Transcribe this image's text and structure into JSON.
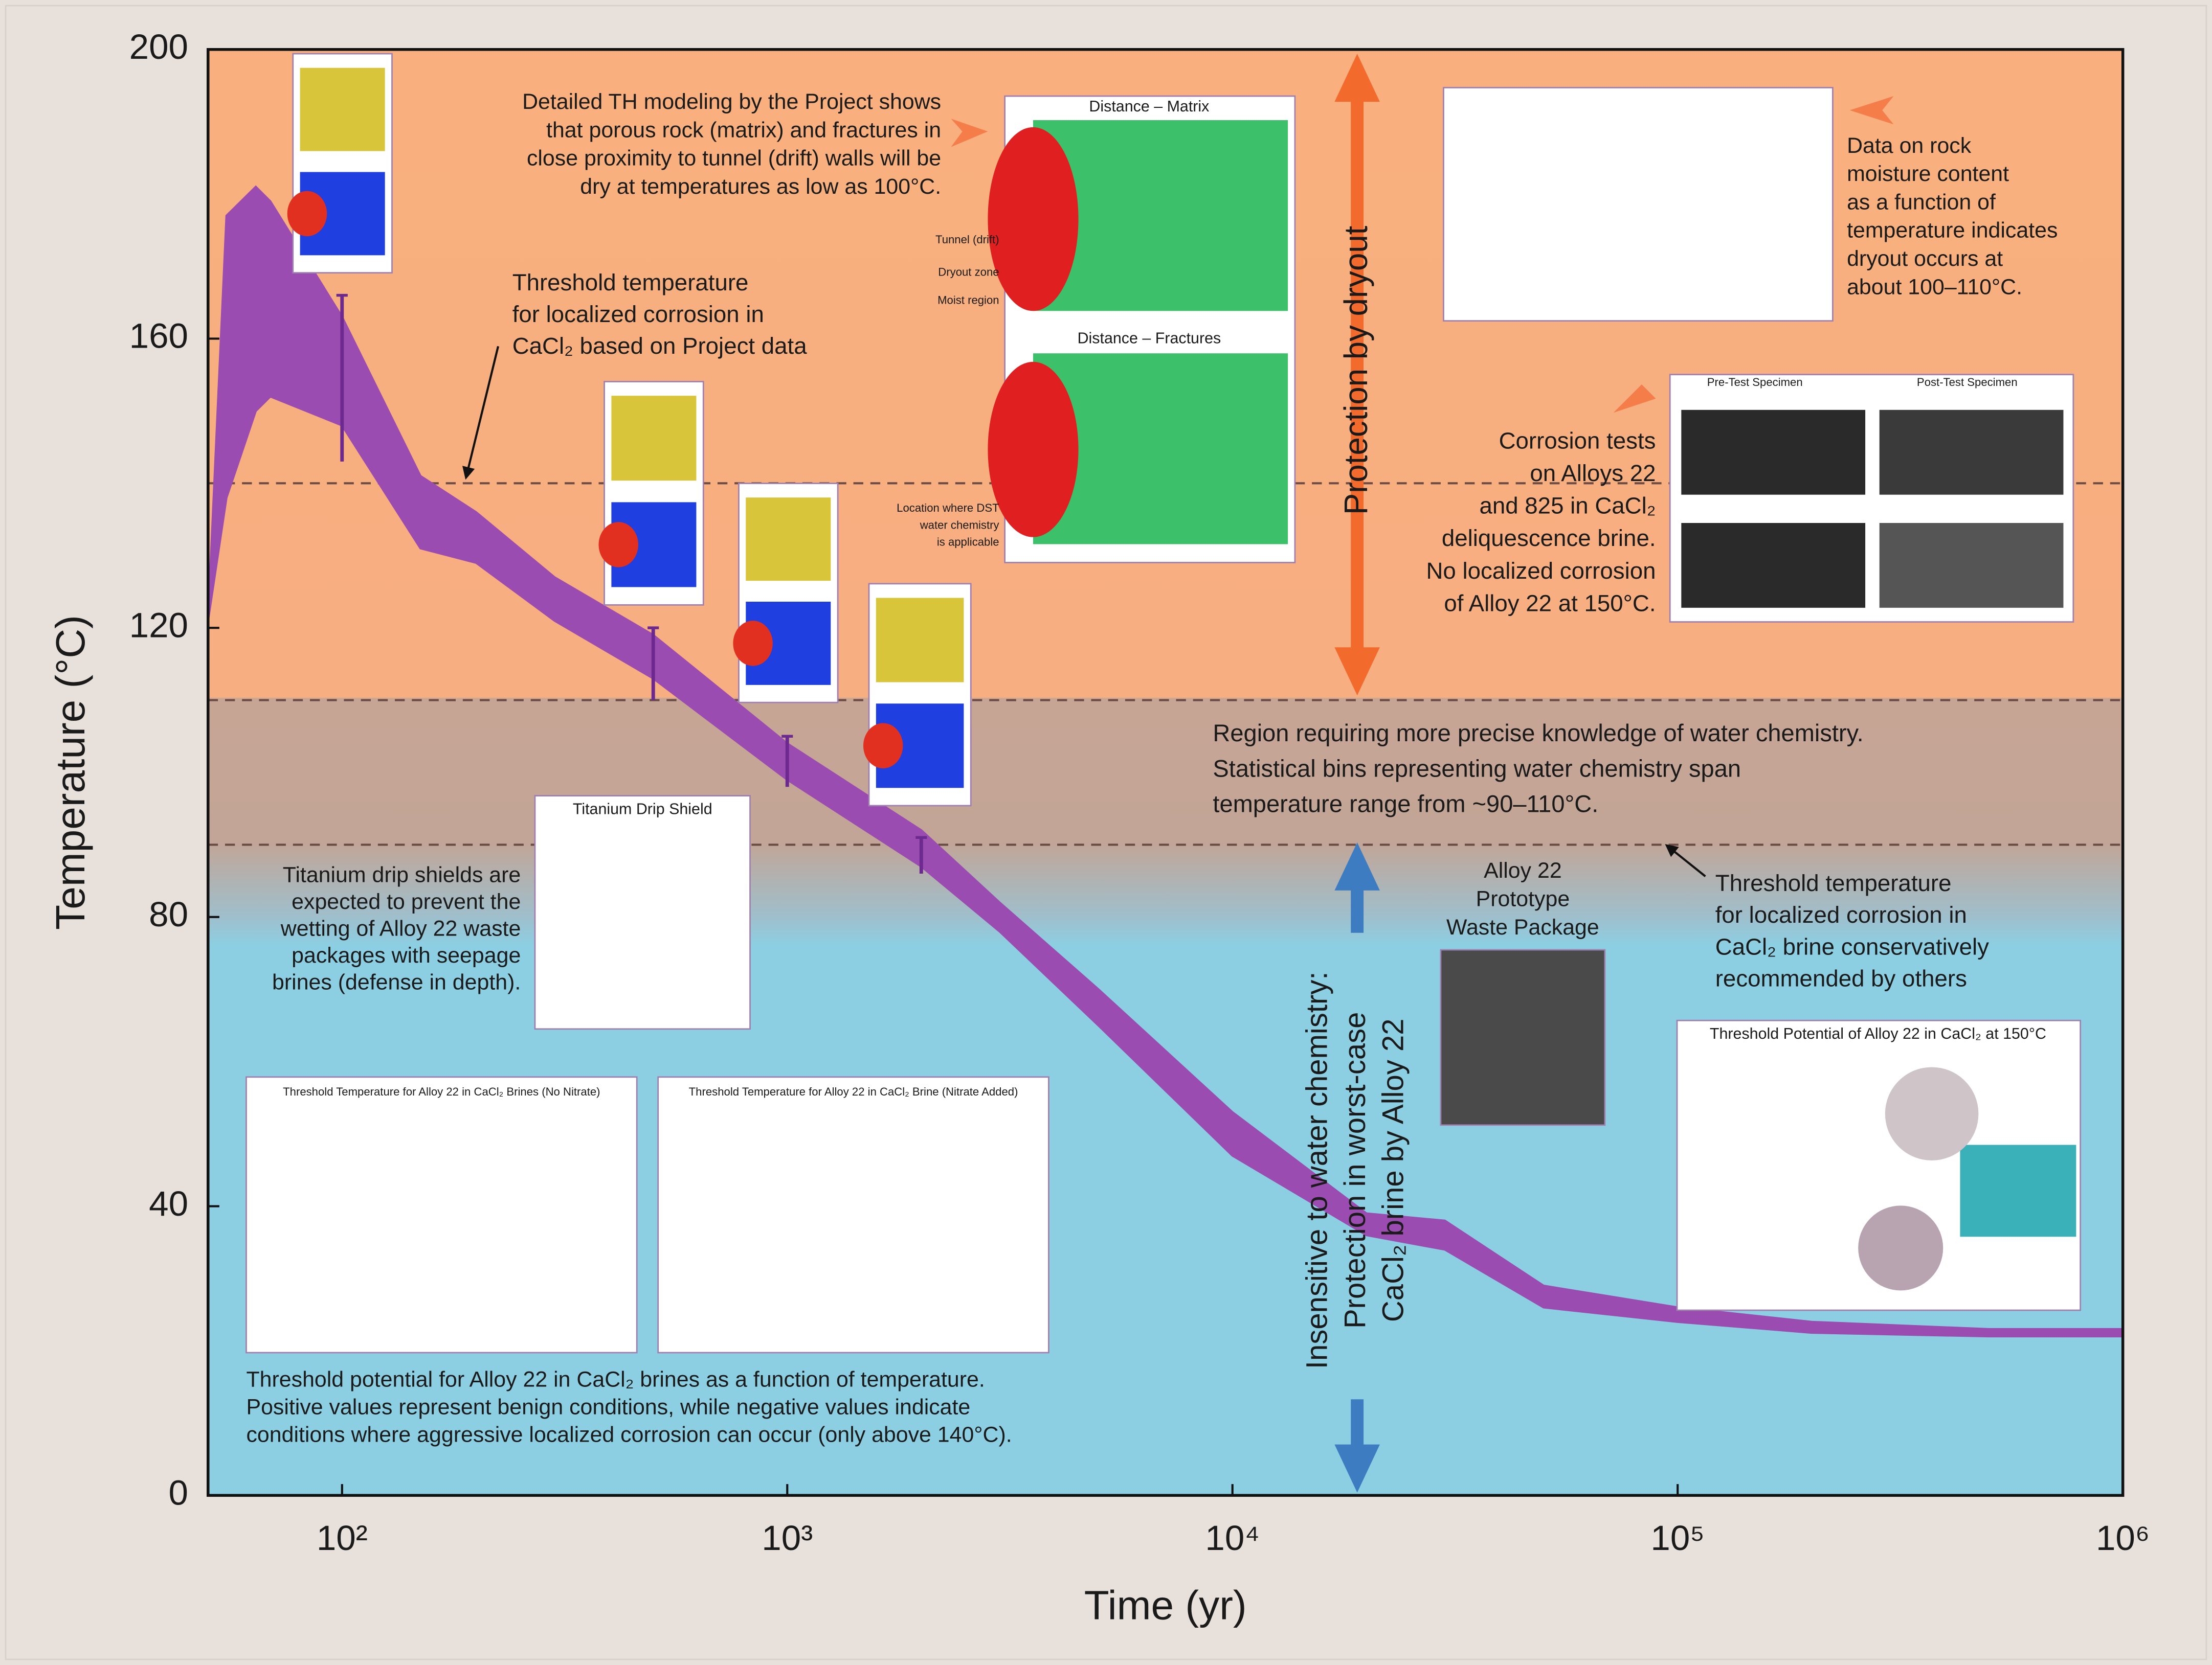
{
  "chart_data": {
    "type": "band",
    "xlabel": "Time (yr)",
    "ylabel": "Temperature (°C)",
    "xscale": "log",
    "xlim": [
      50,
      1000000
    ],
    "ylim": [
      0,
      200
    ],
    "xticks": [
      {
        "value": 100,
        "label": "10²"
      },
      {
        "value": 1000,
        "label": "10³"
      },
      {
        "value": 10000,
        "label": "10⁴"
      },
      {
        "value": 100000,
        "label": "10⁵"
      },
      {
        "value": 1000000,
        "label": "10⁶"
      }
    ],
    "yticks": [
      0,
      40,
      80,
      120,
      160,
      200
    ],
    "color": "#9a4cb0",
    "x": [
      50,
      55,
      64,
      69,
      100,
      150,
      200,
      300,
      500,
      1000,
      2000,
      3000,
      5000,
      10000,
      20000,
      30000,
      50000,
      100000,
      200000,
      500000,
      1000000
    ],
    "upper": [
      121,
      177,
      181,
      179,
      163,
      141,
      136,
      127,
      119,
      104,
      92,
      82,
      70,
      53,
      39,
      38,
      29,
      26,
      24,
      23,
      23
    ],
    "lower": [
      121,
      138,
      150,
      152,
      148,
      131,
      129,
      121,
      113,
      99,
      87,
      78,
      65,
      47,
      36,
      34,
      26,
      24,
      22.5,
      22,
      22
    ],
    "markers": [
      {
        "x": 100,
        "low": 143,
        "high": 166
      },
      {
        "x": 500,
        "low": 110,
        "high": 120
      },
      {
        "x": 1000,
        "low": 98,
        "high": 105
      },
      {
        "x": 2000,
        "low": 86,
        "high": 91
      }
    ],
    "thresholds": [
      140,
      110,
      90
    ],
    "annotations": [
      [
        "Detailed TH modeling by the Project shows",
        "that porous rock (matrix) and fractures in",
        "close proximity to tunnel (drift) walls will be",
        "dry at temperatures as low as 100°C."
      ],
      [
        "Threshold temperature",
        "for localized corrosion in",
        "CaCl₂ based on Project data"
      ],
      [
        "Data on rock",
        "moisture content",
        "as a function of",
        "temperature indicates",
        "dryout occurs at",
        "about 100–110°C."
      ],
      [
        "Corrosion tests",
        "on Alloys 22",
        "and 825 in CaCl₂",
        "deliquescence brine.",
        "No localized corrosion",
        "of Alloy 22 at 150°C."
      ],
      [
        "Region requiring more precise knowledge of water chemistry.",
        "Statistical bins representing water chemistry span",
        "temperature range from ~90–110°C."
      ],
      [
        "Threshold temperature",
        "for localized corrosion in",
        "CaCl₂ brine conservatively",
        "recommended by others"
      ],
      [
        "Alloy 22",
        "Prototype",
        "Waste Package"
      ],
      [
        "Titanium drip shields are",
        "expected to prevent the",
        "wetting of Alloy 22 waste",
        "packages with seepage",
        "brines (defense in depth)."
      ],
      [
        "Threshold potential for Alloy 22 in CaCl₂ brines as a function of temperature.",
        "Positive values represent benign conditions, while negative values indicate",
        "conditions where aggressive localized corrosion can occur (only above 140°C)."
      ],
      [
        "Protection by dryout"
      ],
      [
        "Insensitive to water chemistry:",
        "Protection in worst-case",
        "CaCl₂ brine by Alloy 22"
      ]
    ],
    "insets": [
      [
        "Distance – Matrix",
        "Distance – Fractures",
        "Tunnel (drift)",
        "Dryout zone",
        "Moist region",
        "Location where DST",
        "water chemistry",
        "is applicable"
      ],
      [
        "Pre-Test Specimen",
        "Post-Test Specimen"
      ],
      [
        "Titanium Drip Shield"
      ],
      [
        "Threshold Temperature for Alloy 22 in CaCl₂ Brines (No Nitrate)"
      ],
      [
        "Threshold Temperature for Alloy 22 in CaCl₂ Brine (Nitrate Added)"
      ],
      [
        "Threshold Potential of Alloy 22 in CaCl₂ at 150°C"
      ]
    ]
  }
}
